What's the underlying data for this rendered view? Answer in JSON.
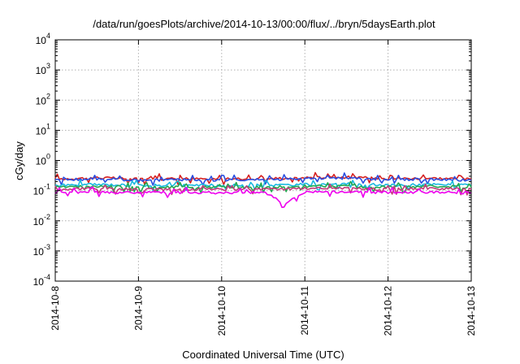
{
  "chart_data": {
    "type": "line",
    "title": "/data/run/goesPlots/archive/2014-10-13/00:00/flux/../bryn/5daysEarth.plot",
    "xlabel": "Coordinated Universal Time (UTC)",
    "ylabel": "cGy/day",
    "y_scale": "log",
    "ylim": [
      0.0001,
      10000
    ],
    "y_ticks": [
      {
        "base": "10",
        "exp": "-4",
        "value": 0.0001
      },
      {
        "base": "10",
        "exp": "-3",
        "value": 0.001
      },
      {
        "base": "10",
        "exp": "-2",
        "value": 0.01
      },
      {
        "base": "10",
        "exp": "-1",
        "value": 0.1
      },
      {
        "base": "10",
        "exp": "0",
        "value": 1
      },
      {
        "base": "10",
        "exp": "1",
        "value": 10
      },
      {
        "base": "10",
        "exp": "2",
        "value": 100
      },
      {
        "base": "10",
        "exp": "3",
        "value": 1000
      },
      {
        "base": "10",
        "exp": "4",
        "value": 10000
      }
    ],
    "x_ticks": [
      "2014-10-8",
      "2014-10-9",
      "2014-10-10",
      "2014-10-11",
      "2014-10-12",
      "2014-10-13"
    ],
    "xlim": [
      "2014-10-08T00:00",
      "2014-10-13T00:00"
    ],
    "grid": true,
    "series": [
      {
        "color": "#d62020",
        "x": [
          "2014-10-08T00:00",
          "2014-10-08T12:00",
          "2014-10-09T00:00",
          "2014-10-09T12:00",
          "2014-10-10T00:00",
          "2014-10-10T12:00",
          "2014-10-11T00:00",
          "2014-10-11T12:00",
          "2014-10-12T00:00",
          "2014-10-12T12:00",
          "2014-10-13T00:00"
        ],
        "values": [
          0.24,
          0.27,
          0.24,
          0.25,
          0.24,
          0.25,
          0.27,
          0.28,
          0.25,
          0.26,
          0.24
        ]
      },
      {
        "color": "#2a4ee0",
        "x": [
          "2014-10-08T00:00",
          "2014-10-08T12:00",
          "2014-10-09T00:00",
          "2014-10-09T12:00",
          "2014-10-10T00:00",
          "2014-10-10T12:00",
          "2014-10-11T00:00",
          "2014-10-11T12:00",
          "2014-10-12T00:00",
          "2014-10-12T12:00",
          "2014-10-13T00:00"
        ],
        "values": [
          0.22,
          0.25,
          0.22,
          0.23,
          0.22,
          0.23,
          0.25,
          0.26,
          0.23,
          0.24,
          0.22
        ]
      },
      {
        "color": "#19b8e0",
        "x": [
          "2014-10-08T00:00",
          "2014-10-08T12:00",
          "2014-10-09T00:00",
          "2014-10-09T12:00",
          "2014-10-10T00:00",
          "2014-10-10T12:00",
          "2014-10-11T00:00",
          "2014-10-11T12:00",
          "2014-10-12T00:00",
          "2014-10-12T12:00",
          "2014-10-13T00:00"
        ],
        "values": [
          0.15,
          0.16,
          0.15,
          0.15,
          0.15,
          0.15,
          0.16,
          0.17,
          0.15,
          0.16,
          0.15
        ]
      },
      {
        "color": "#23a850",
        "x": [
          "2014-10-08T00:00",
          "2014-10-08T12:00",
          "2014-10-09T00:00",
          "2014-10-09T12:00",
          "2014-10-10T00:00",
          "2014-10-10T12:00",
          "2014-10-11T00:00",
          "2014-10-11T12:00",
          "2014-10-12T00:00",
          "2014-10-12T12:00",
          "2014-10-13T00:00"
        ],
        "values": [
          0.13,
          0.14,
          0.13,
          0.13,
          0.13,
          0.13,
          0.14,
          0.14,
          0.13,
          0.14,
          0.13
        ]
      },
      {
        "color": "#c23a7a",
        "x": [
          "2014-10-08T00:00",
          "2014-10-08T12:00",
          "2014-10-09T00:00",
          "2014-10-09T12:00",
          "2014-10-10T00:00",
          "2014-10-10T12:00",
          "2014-10-11T00:00",
          "2014-10-11T12:00",
          "2014-10-12T00:00",
          "2014-10-12T12:00",
          "2014-10-13T00:00"
        ],
        "values": [
          0.11,
          0.12,
          0.11,
          0.11,
          0.11,
          0.11,
          0.12,
          0.12,
          0.11,
          0.12,
          0.11
        ]
      },
      {
        "color": "#ee00ee",
        "x": [
          "2014-10-08T00:00",
          "2014-10-08T12:00",
          "2014-10-09T00:00",
          "2014-10-09T12:00",
          "2014-10-10T00:00",
          "2014-10-10T12:00",
          "2014-10-10T18:00",
          "2014-10-11T00:00",
          "2014-10-11T12:00",
          "2014-10-12T00:00",
          "2014-10-12T12:00",
          "2014-10-13T00:00"
        ],
        "values": [
          0.085,
          0.09,
          0.085,
          0.088,
          0.085,
          0.088,
          0.03,
          0.09,
          0.092,
          0.088,
          0.09,
          0.085
        ]
      }
    ]
  }
}
